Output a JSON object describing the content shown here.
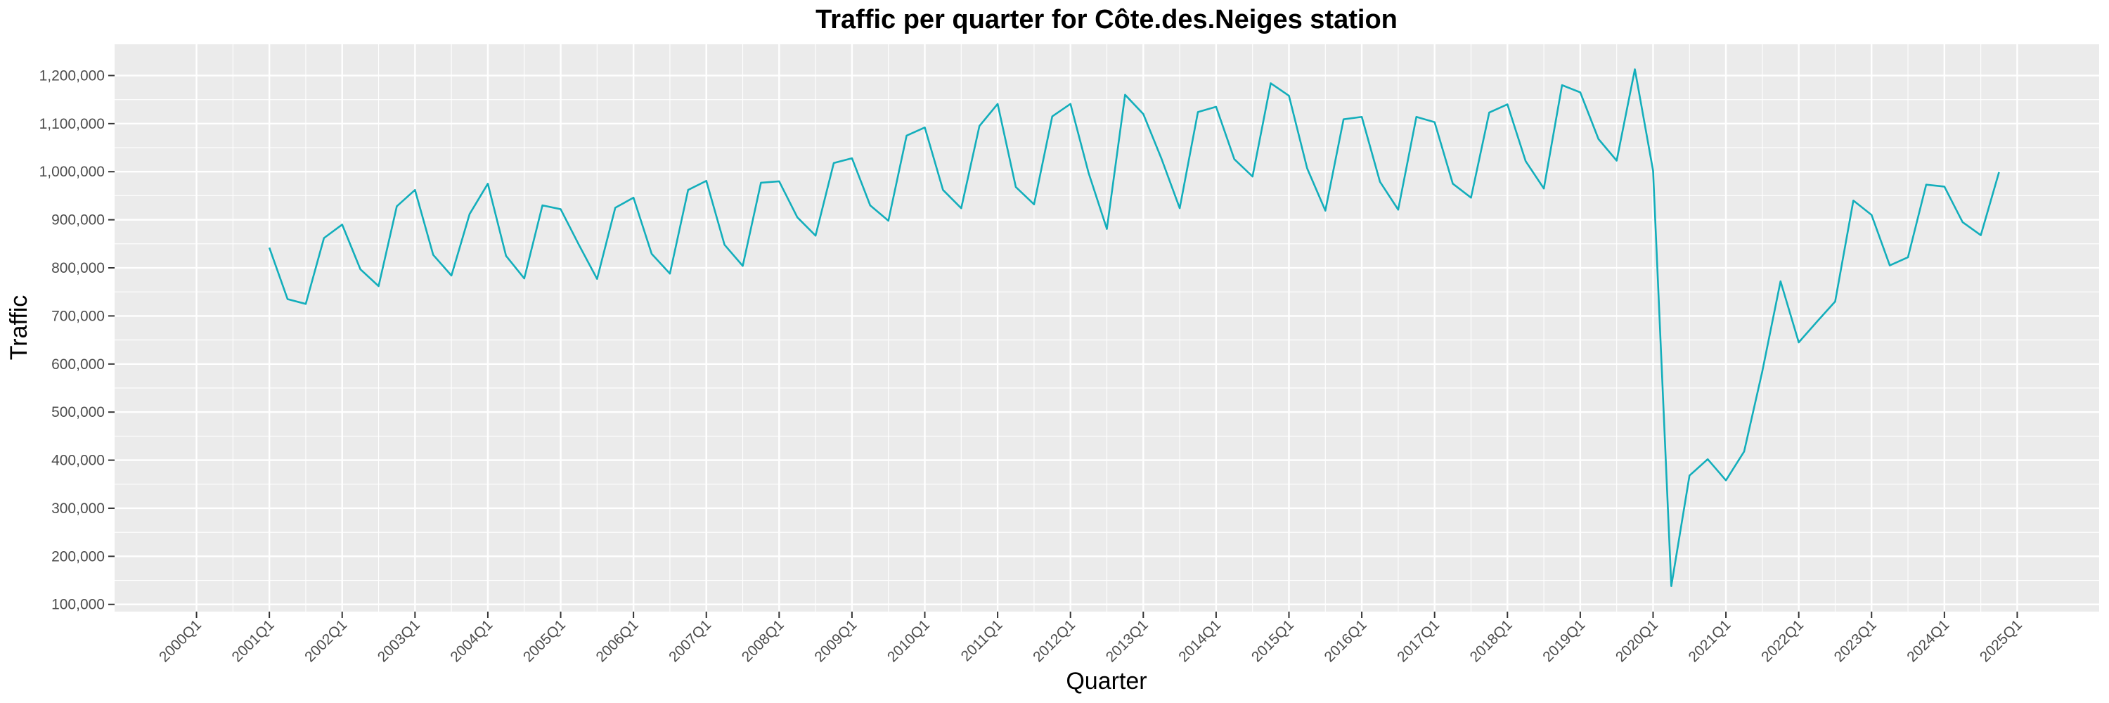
{
  "chart_data": {
    "type": "line",
    "title": "Traffic per quarter for Côte.des.Neiges station",
    "xlabel": "Quarter",
    "ylabel": "Traffic",
    "ylim": [
      85000,
      1265000
    ],
    "xlim": [
      "2000Q1",
      "2025Q1"
    ],
    "x_ticks": [
      "2000Q1",
      "2001Q1",
      "2002Q1",
      "2003Q1",
      "2004Q1",
      "2005Q1",
      "2006Q1",
      "2007Q1",
      "2008Q1",
      "2009Q1",
      "2010Q1",
      "2011Q1",
      "2012Q1",
      "2013Q1",
      "2014Q1",
      "2015Q1",
      "2016Q1",
      "2017Q1",
      "2018Q1",
      "2019Q1",
      "2020Q1",
      "2021Q1",
      "2022Q1",
      "2023Q1",
      "2024Q1",
      "2025Q1"
    ],
    "y_ticks": [
      100000,
      200000,
      300000,
      400000,
      500000,
      600000,
      700000,
      800000,
      900000,
      1000000,
      1100000,
      1200000
    ],
    "y_tick_labels": [
      "100,000",
      "200,000",
      "300,000",
      "400,000",
      "500,000",
      "600,000",
      "700,000",
      "800,000",
      "900,000",
      "1,000,000",
      "1,100,000",
      "1,200,000"
    ],
    "grid": true,
    "line_color": "#13aebb",
    "panel_color": "#ebebeb",
    "grid_color": "#ffffff",
    "series": [
      {
        "x": [
          "2001Q1",
          "2001Q2",
          "2001Q3",
          "2001Q4",
          "2002Q1",
          "2002Q2",
          "2002Q3",
          "2002Q4",
          "2003Q1",
          "2003Q2",
          "2003Q3",
          "2003Q4",
          "2004Q1",
          "2004Q2",
          "2004Q3",
          "2004Q4",
          "2005Q1",
          "2005Q2",
          "2005Q3",
          "2005Q4",
          "2006Q1",
          "2006Q2",
          "2006Q3",
          "2006Q4",
          "2007Q1",
          "2007Q2",
          "2007Q3",
          "2007Q4",
          "2008Q1",
          "2008Q2",
          "2008Q3",
          "2008Q4",
          "2009Q1",
          "2009Q2",
          "2009Q3",
          "2009Q4",
          "2010Q1",
          "2010Q2",
          "2010Q3",
          "2010Q4",
          "2011Q1",
          "2011Q2",
          "2011Q3",
          "2011Q4",
          "2012Q1",
          "2012Q2",
          "2012Q3",
          "2012Q4",
          "2013Q1",
          "2013Q2",
          "2013Q3",
          "2013Q4",
          "2014Q1",
          "2014Q2",
          "2014Q3",
          "2014Q4",
          "2015Q1",
          "2015Q2",
          "2015Q3",
          "2015Q4",
          "2016Q1",
          "2016Q2",
          "2016Q3",
          "2016Q4",
          "2017Q1",
          "2017Q2",
          "2017Q3",
          "2017Q4",
          "2018Q1",
          "2018Q2",
          "2018Q3",
          "2018Q4",
          "2019Q1",
          "2019Q2",
          "2019Q3",
          "2019Q4",
          "2020Q1",
          "2020Q2",
          "2020Q3",
          "2020Q4",
          "2021Q1",
          "2021Q2",
          "2021Q3",
          "2021Q4",
          "2022Q1",
          "2022Q2",
          "2022Q3",
          "2022Q4",
          "2023Q1",
          "2023Q2",
          "2023Q3",
          "2023Q4",
          "2024Q1",
          "2024Q2",
          "2024Q3",
          "2024Q4"
        ],
        "values": [
          842000,
          735000,
          725000,
          862000,
          890000,
          797000,
          762000,
          928000,
          962000,
          827000,
          784000,
          912000,
          975000,
          825000,
          778000,
          930000,
          922000,
          848000,
          777000,
          925000,
          946000,
          829000,
          788000,
          962000,
          981000,
          848000,
          804000,
          977000,
          980000,
          905000,
          867000,
          1018000,
          1028000,
          930000,
          898000,
          1075000,
          1092000,
          962000,
          924000,
          1095000,
          1141000,
          968000,
          932000,
          1115000,
          1141000,
          997000,
          881000,
          1160000,
          1120000,
          1027000,
          924000,
          1124000,
          1135000,
          1026000,
          990000,
          1184000,
          1158000,
          1007000,
          919000,
          1109000,
          1114000,
          979000,
          921000,
          1114000,
          1103000,
          975000,
          946000,
          1123000,
          1140000,
          1022000,
          965000,
          1180000,
          1165000,
          1068000,
          1023000,
          1213000,
          1002000,
          138000,
          368000,
          402000,
          358000,
          418000,
          585000,
          772000,
          645000,
          688000,
          730000,
          940000,
          910000,
          805000,
          822000,
          973000,
          969000,
          895000,
          868000,
          999000
        ]
      }
    ]
  }
}
